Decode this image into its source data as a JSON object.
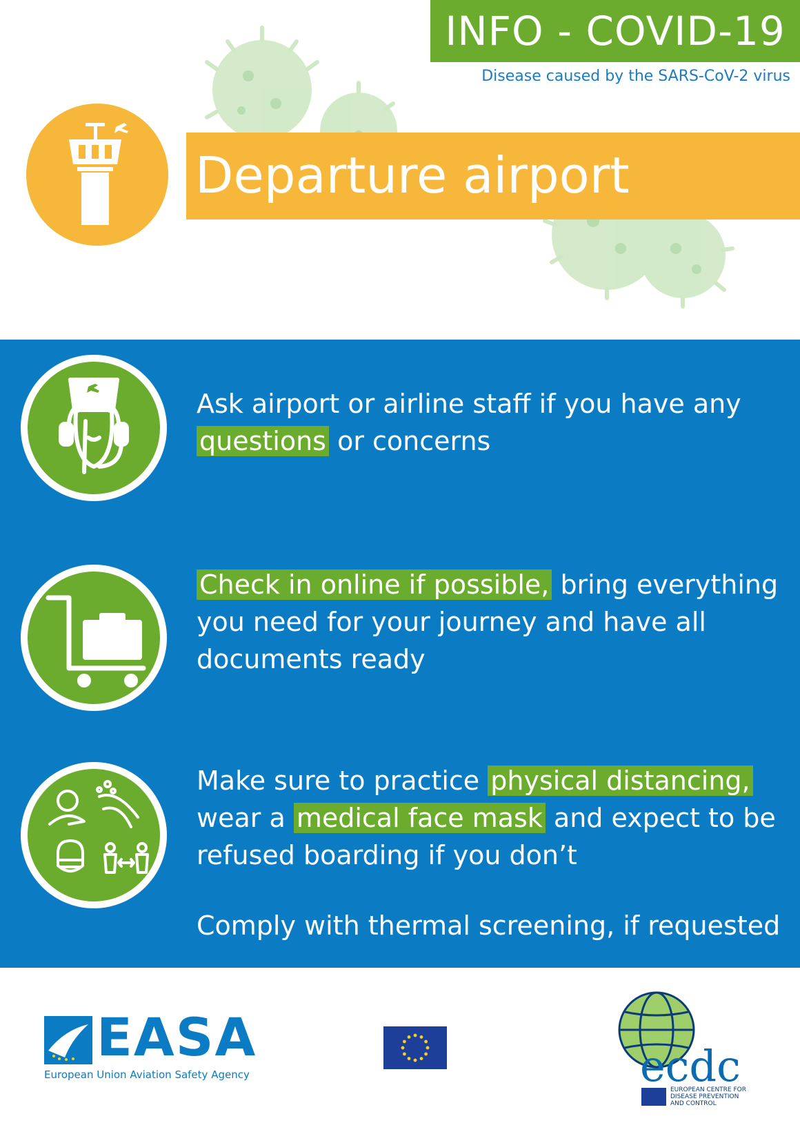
{
  "header": {
    "badge": "INFO - COVID-19",
    "subtitle": "Disease caused by the SARS-CoV-2 virus"
  },
  "banner": {
    "title": "Departure airport"
  },
  "items": [
    {
      "icon": "cabin-crew-headset-icon",
      "parts": [
        {
          "text": "Ask airport or airline staff if you have any ",
          "hl": false
        },
        {
          "text": "questions",
          "hl": true
        },
        {
          "text": " or concerns",
          "hl": false
        }
      ]
    },
    {
      "icon": "luggage-trolley-icon",
      "parts": [
        {
          "text": "Check in online if possible,",
          "hl": true
        },
        {
          "text": " bring everything you need for your journey and have all documents ready",
          "hl": false
        }
      ]
    },
    {
      "icon": "hygiene-distancing-mask-icon",
      "parts": [
        {
          "text": "Make sure to practice ",
          "hl": false
        },
        {
          "text": "physical distancing,",
          "hl": true
        },
        {
          "text": " wear a ",
          "hl": false
        },
        {
          "text": "medical face mask",
          "hl": true
        },
        {
          "text": " and expect to be refused boarding if you don’t",
          "hl": false
        }
      ]
    }
  ],
  "extra_note": "Comply with thermal screening, if requested",
  "footer": {
    "easa_name": "EASA",
    "easa_full": "European Union Aviation Safety Agency",
    "ecdc_name": "ecdc",
    "ecdc_full_1": "EUROPEAN CENTRE FOR",
    "ecdc_full_2": "DISEASE PREVENTION",
    "ecdc_full_3": "AND CONTROL"
  },
  "colors": {
    "green": "#6bac2e",
    "blue": "#0b7cc3",
    "orange": "#f7b73a"
  }
}
